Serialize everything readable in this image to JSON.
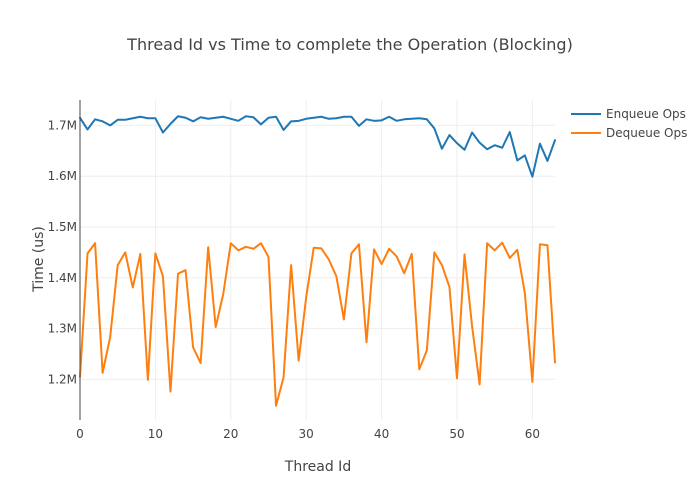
{
  "chart_data": {
    "type": "line",
    "title": "Thread Id vs Time to complete the Operation (Blocking)",
    "xlabel": "Thread Id",
    "ylabel": "Time (us)",
    "xlim": [
      0,
      63
    ],
    "ylim": [
      1120000,
      1750000
    ],
    "x_ticks": [
      0,
      10,
      20,
      30,
      40,
      50,
      60
    ],
    "x_tick_labels": [
      "0",
      "10",
      "20",
      "30",
      "40",
      "50",
      "60"
    ],
    "y_ticks": [
      1200000,
      1300000,
      1400000,
      1500000,
      1600000,
      1700000
    ],
    "y_tick_labels": [
      "1.2M",
      "1.3M",
      "1.4M",
      "1.5M",
      "1.6M",
      "1.7M"
    ],
    "grid": true,
    "legend_position": "top-right",
    "x": [
      0,
      1,
      2,
      3,
      4,
      5,
      6,
      7,
      8,
      9,
      10,
      11,
      12,
      13,
      14,
      15,
      16,
      17,
      18,
      19,
      20,
      21,
      22,
      23,
      24,
      25,
      26,
      27,
      28,
      29,
      30,
      31,
      32,
      33,
      34,
      35,
      36,
      37,
      38,
      39,
      40,
      41,
      42,
      43,
      44,
      45,
      46,
      47,
      48,
      49,
      50,
      51,
      52,
      53,
      54,
      55,
      56,
      57,
      58,
      59,
      60,
      61,
      62,
      63
    ],
    "series": [
      {
        "name": "Enqueue Ops",
        "color": "#1f77b4",
        "values": [
          1715000,
          1692000,
          1712000,
          1708000,
          1700000,
          1711000,
          1711000,
          1714000,
          1717000,
          1714000,
          1714000,
          1686000,
          1703000,
          1718000,
          1715000,
          1708000,
          1716000,
          1713000,
          1715000,
          1717000,
          1713000,
          1709000,
          1718000,
          1716000,
          1702000,
          1715000,
          1717000,
          1691000,
          1708000,
          1709000,
          1713000,
          1715000,
          1717000,
          1713000,
          1714000,
          1717000,
          1717000,
          1699000,
          1712000,
          1709000,
          1710000,
          1717000,
          1709000,
          1712000,
          1713000,
          1714000,
          1712000,
          1694000,
          1654000,
          1681000,
          1665000,
          1652000,
          1686000,
          1666000,
          1653000,
          1661000,
          1656000,
          1687000,
          1631000,
          1641000,
          1599000,
          1664000,
          1630000,
          1671000
        ]
      },
      {
        "name": "Dequeue Ops",
        "color": "#ff7f0e",
        "values": [
          1205000,
          1448000,
          1468000,
          1213000,
          1283000,
          1425000,
          1450000,
          1381000,
          1447000,
          1199000,
          1448000,
          1403000,
          1176000,
          1408000,
          1415000,
          1263000,
          1232000,
          1460000,
          1303000,
          1368000,
          1468000,
          1454000,
          1461000,
          1457000,
          1468000,
          1441000,
          1148000,
          1204000,
          1425000,
          1237000,
          1362000,
          1459000,
          1458000,
          1436000,
          1403000,
          1318000,
          1448000,
          1466000,
          1273000,
          1456000,
          1427000,
          1457000,
          1442000,
          1409000,
          1447000,
          1220000,
          1257000,
          1450000,
          1425000,
          1382000,
          1202000,
          1446000,
          1305000,
          1190000,
          1468000,
          1454000,
          1469000,
          1439000,
          1455000,
          1370000,
          1195000,
          1466000,
          1464000,
          1233000
        ]
      }
    ]
  }
}
